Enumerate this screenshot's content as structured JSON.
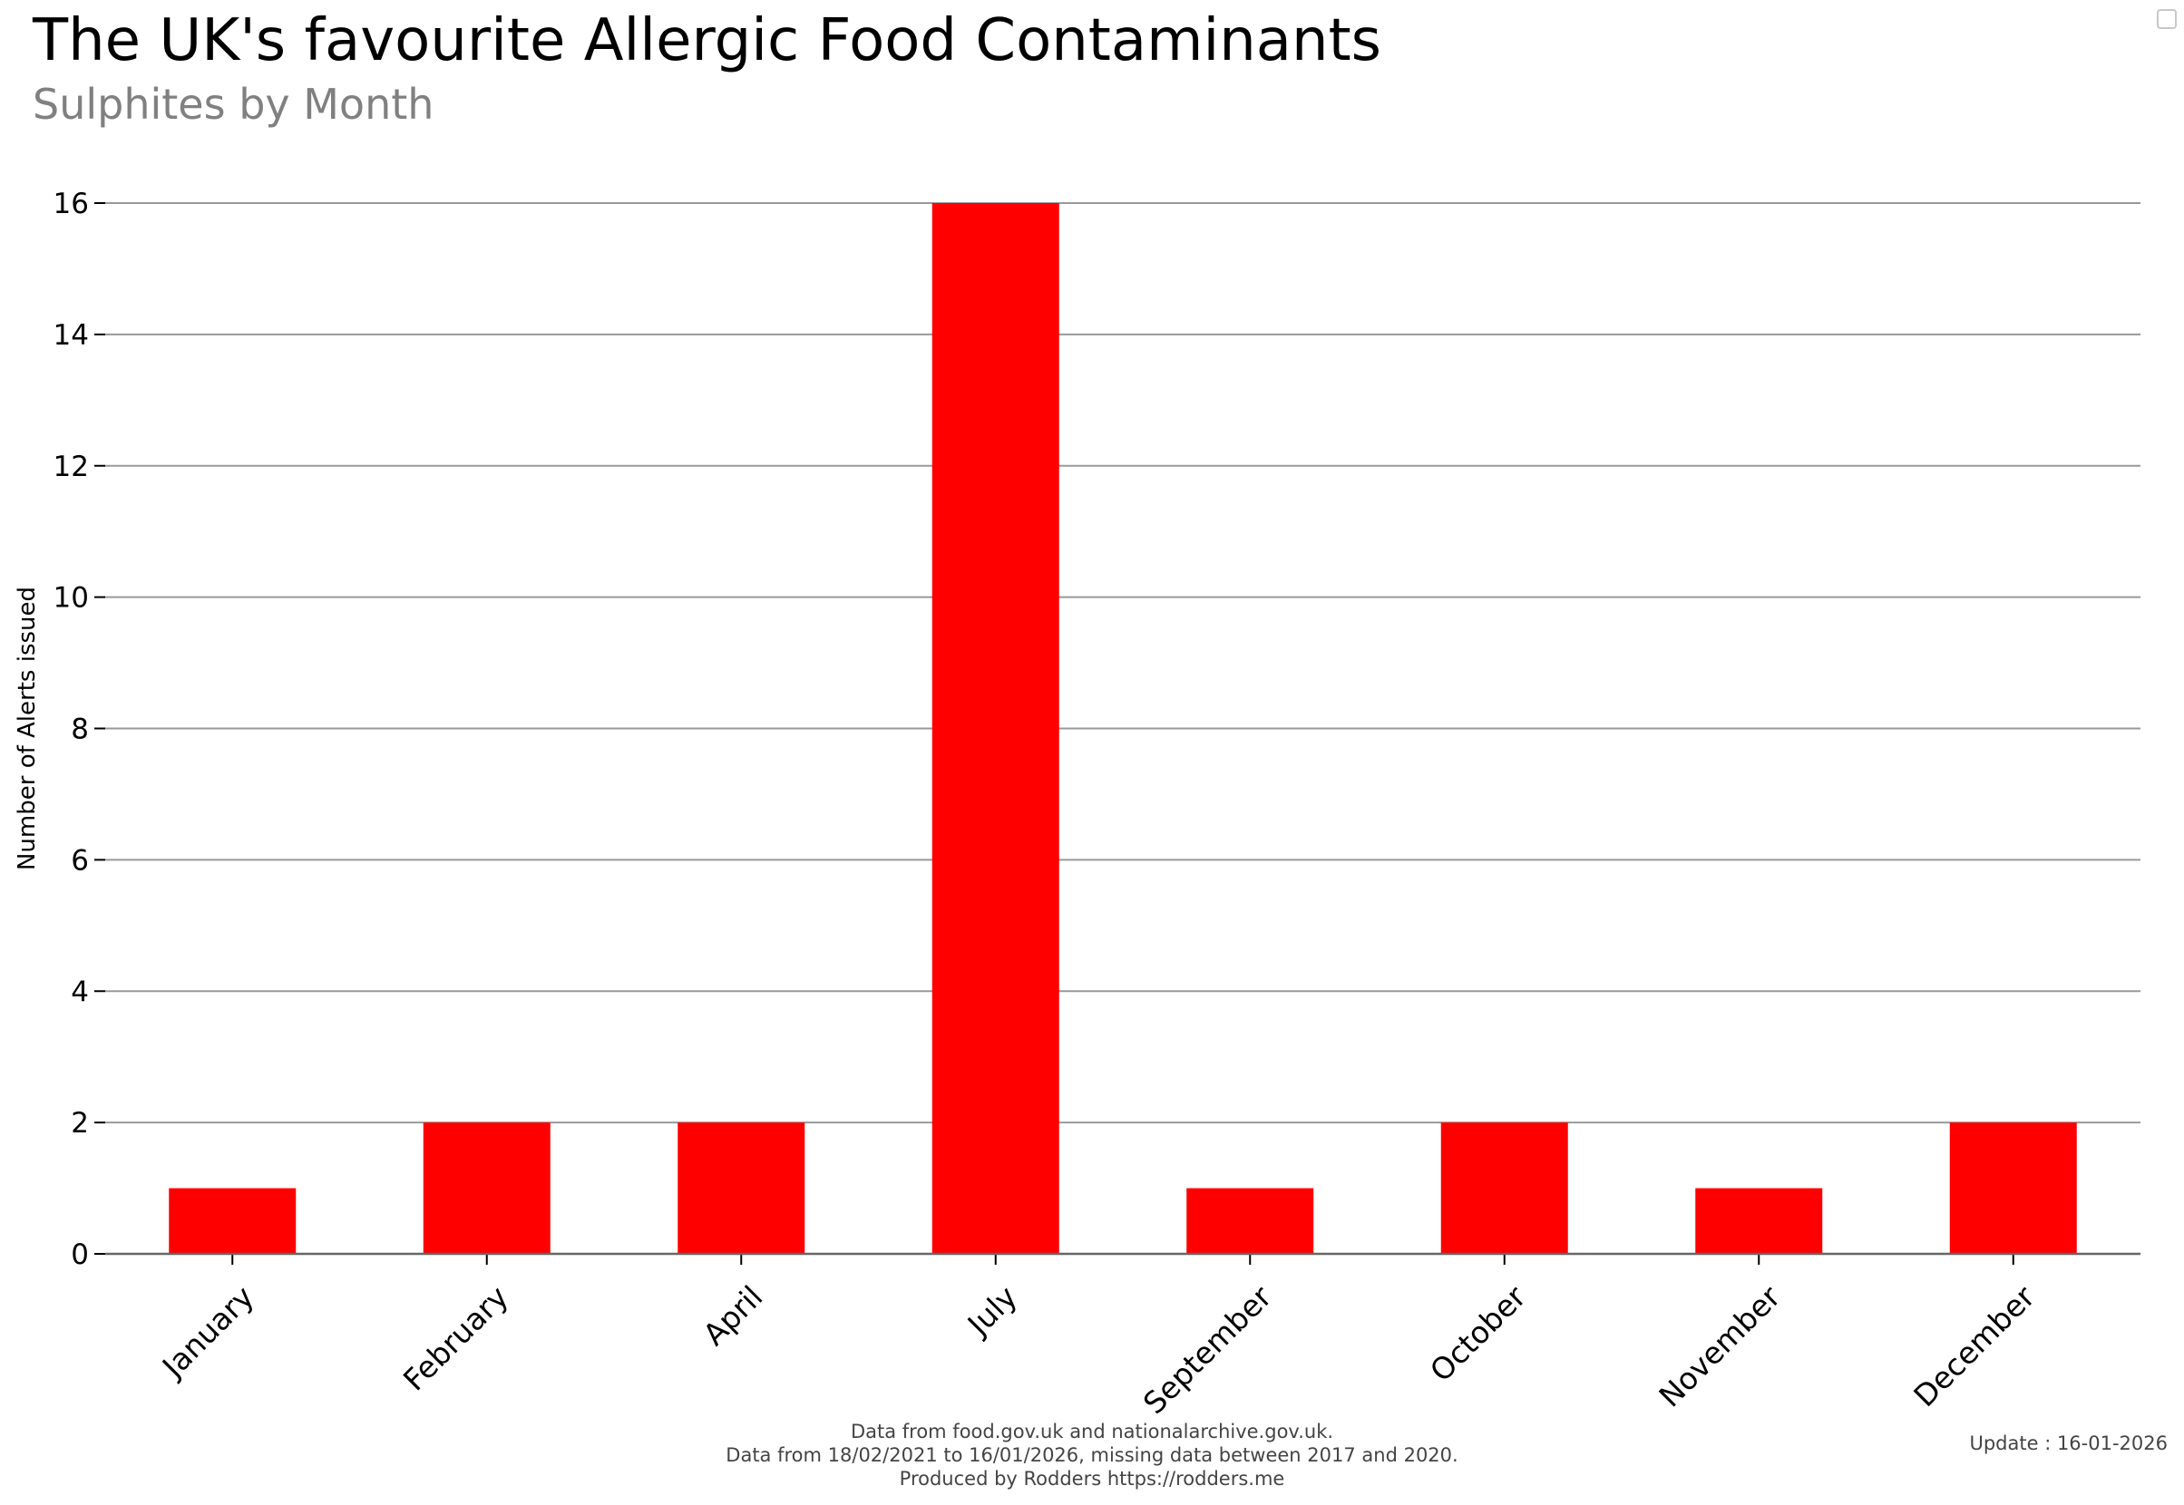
{
  "header": {
    "title": "The UK's favourite Allergic Food Contaminants",
    "subtitle": "Sulphites by Month"
  },
  "chart_data": {
    "type": "bar",
    "categories": [
      "January",
      "February",
      "April",
      "July",
      "September",
      "October",
      "November",
      "December"
    ],
    "values": [
      1,
      2,
      2,
      16,
      1,
      2,
      1,
      2
    ],
    "title": "The UK's favourite Allergic Food Contaminants",
    "subtitle": "Sulphites by Month",
    "xlabel": "",
    "ylabel": "Number of Alerts issued",
    "ylim": [
      0,
      16
    ],
    "yticks": [
      0,
      2,
      4,
      6,
      8,
      10,
      12,
      14,
      16
    ],
    "grid": true,
    "bar_color": "#ff0000",
    "grid_color": "#999999"
  },
  "footer": {
    "line1": "Data from food.gov.uk and nationalarchive.gov.uk.",
    "line2": "Data from 18/02/2021 to 16/01/2026, missing data between 2017 and 2020.",
    "line3": "Produced by Rodders https://rodders.me",
    "update": "Update : 16-01-2026"
  }
}
